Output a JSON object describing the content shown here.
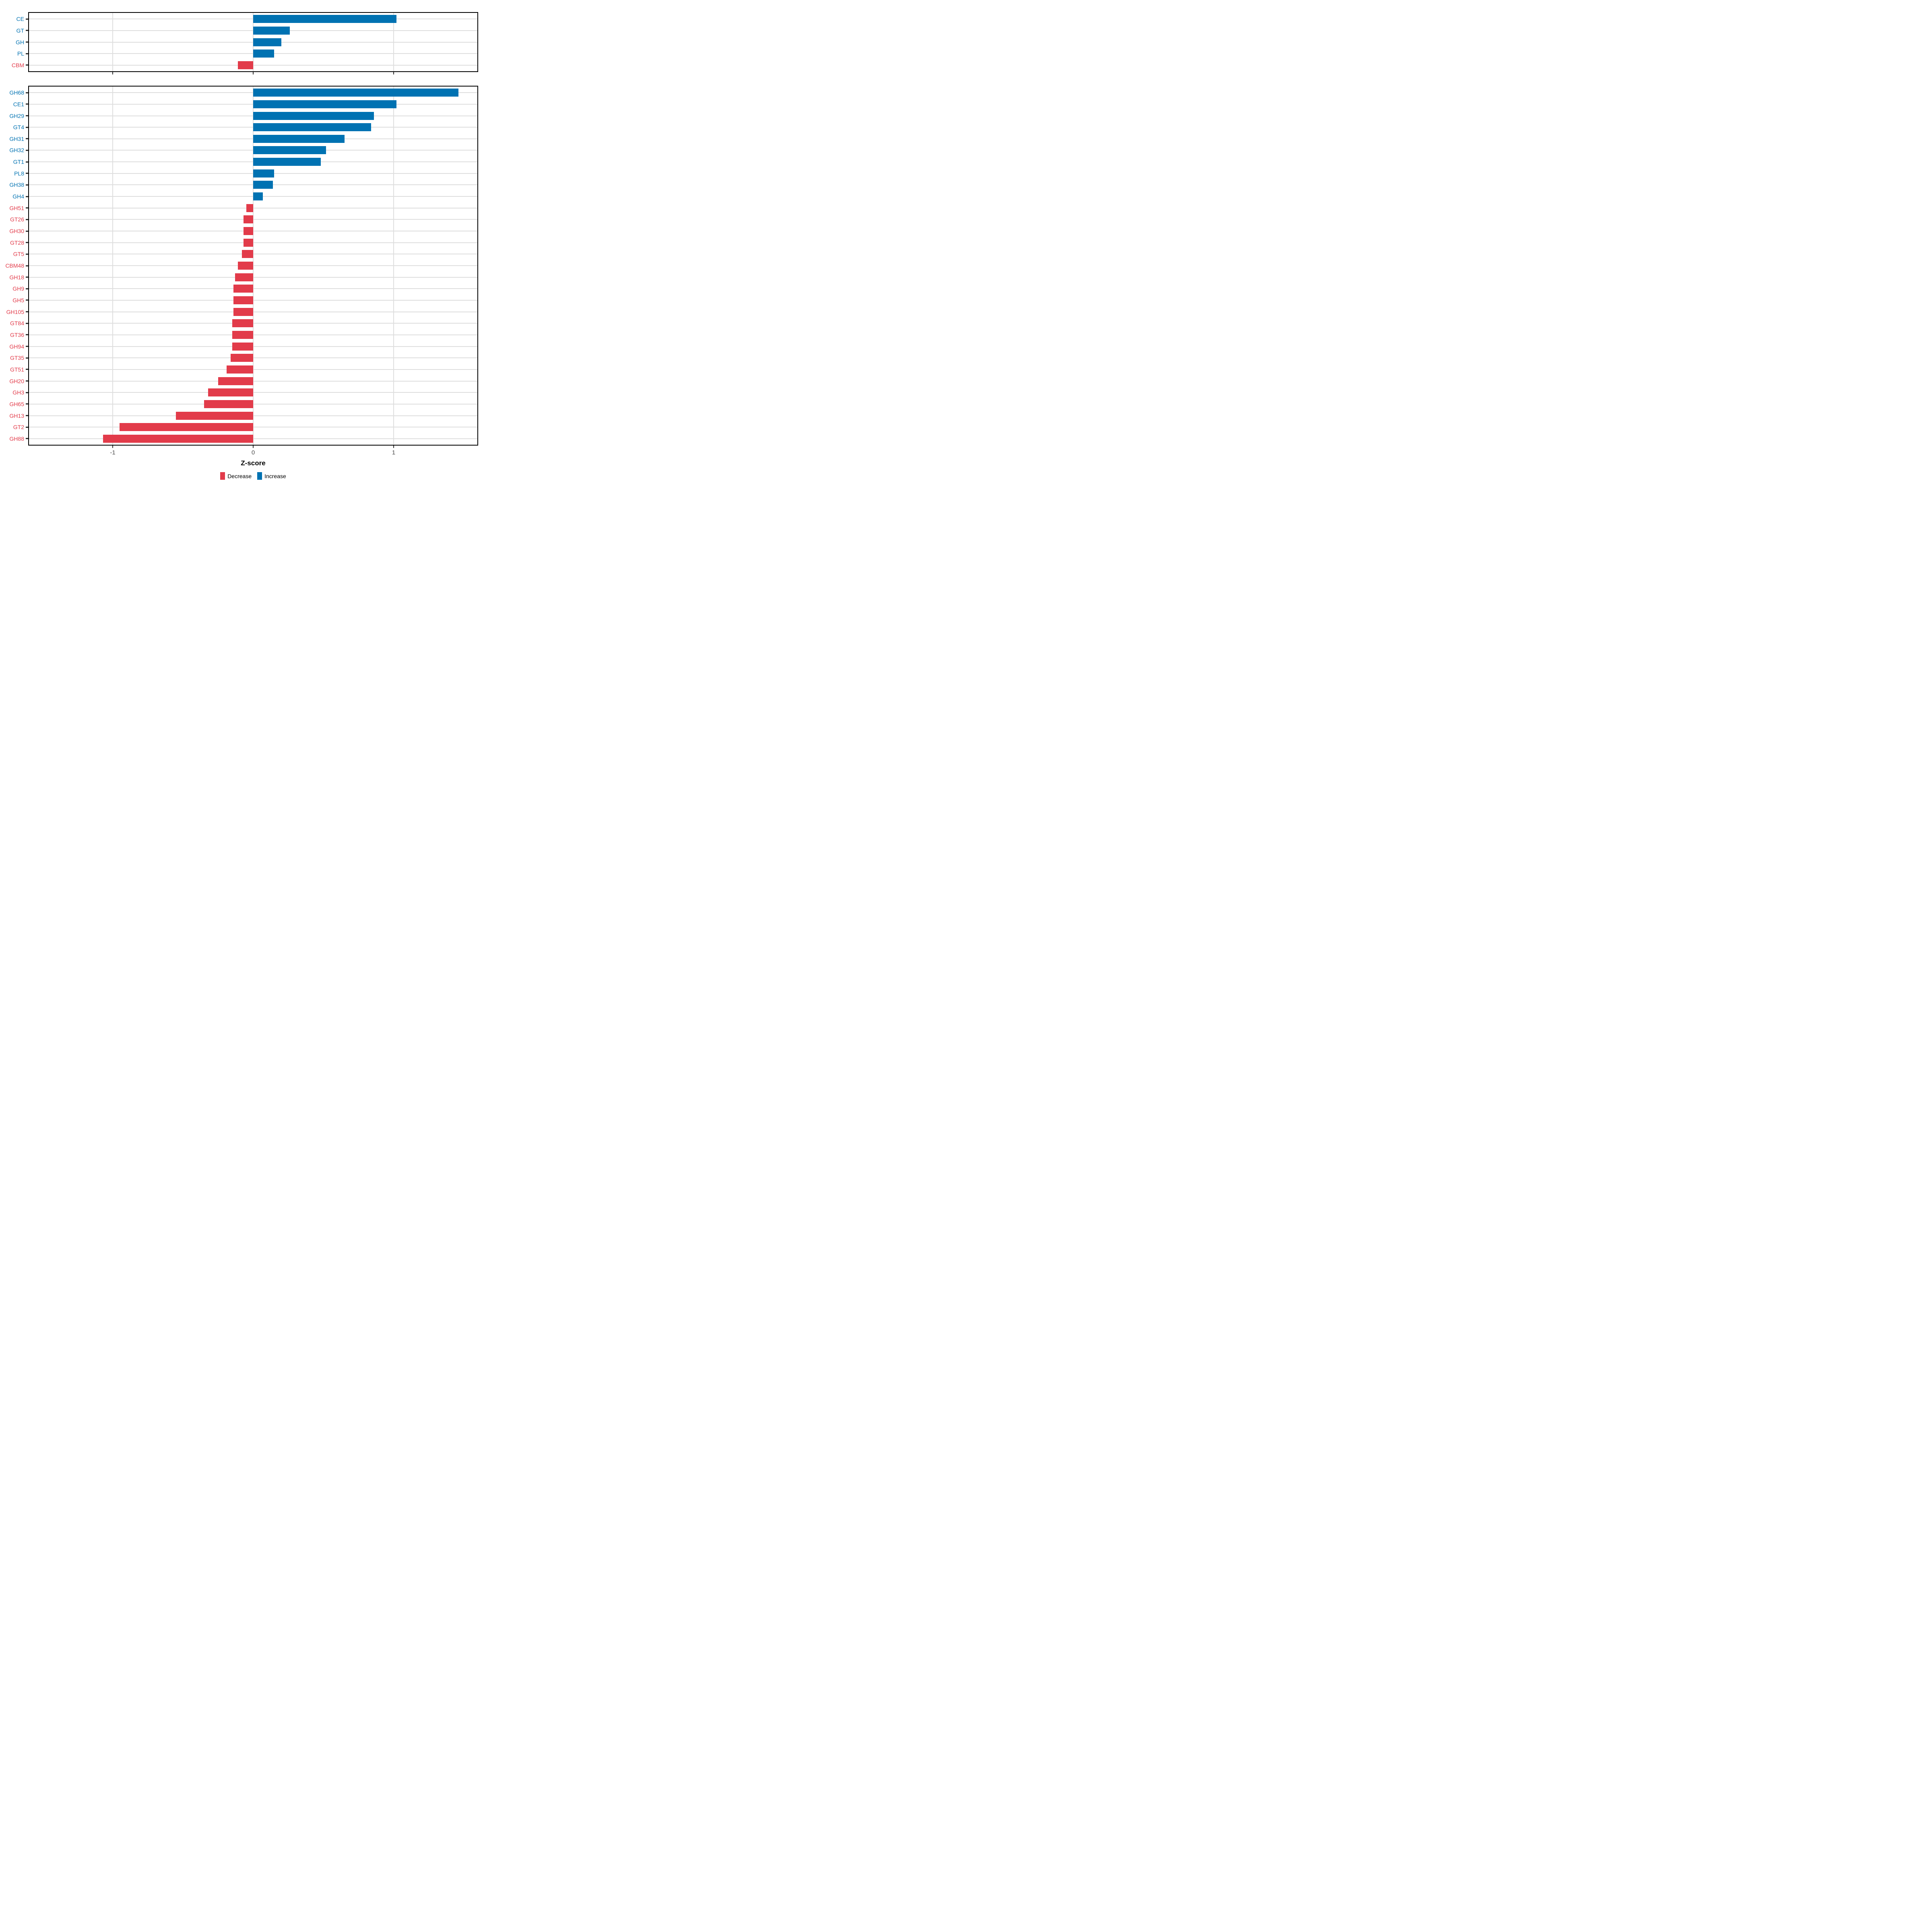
{
  "figure": {
    "background": "#FFFFFF"
  },
  "colors": {
    "increase": "#0072B2",
    "decrease": "#E23B4A",
    "grid": "#DEDEDE",
    "panel_border": "#000000",
    "tick_mark": "#333333",
    "axis_text": "#4D4D4D",
    "axis_title": "#000000"
  },
  "x_axis": {
    "title": "Z-score",
    "ticks": [
      -1,
      0,
      1
    ],
    "tick_labels": [
      "-1",
      "0",
      "1"
    ],
    "range": [
      -1.6,
      1.6
    ]
  },
  "legend": {
    "position": "bottom-center",
    "items": [
      {
        "label": "Decrease",
        "key": "decrease"
      },
      {
        "label": "Increase",
        "key": "increase"
      }
    ]
  },
  "chart_data": [
    {
      "type": "bar",
      "orientation": "horizontal",
      "panel": "cazyme-classes",
      "title": "",
      "xlabel": "Z-score",
      "ylabel": "",
      "xlim": [
        -1.6,
        1.6
      ],
      "grid": true,
      "legend_position": "bottom",
      "color_rule": "value >= 0 -> increase (blue), value < 0 -> decrease (red)",
      "categories": [
        "CE",
        "GT",
        "GH",
        "PL",
        "CBM"
      ],
      "values": [
        1.02,
        0.26,
        0.2,
        0.15,
        -0.11
      ]
    },
    {
      "type": "bar",
      "orientation": "horizontal",
      "panel": "cazyme-families",
      "title": "",
      "xlabel": "Z-score",
      "ylabel": "",
      "xlim": [
        -1.6,
        1.6
      ],
      "grid": true,
      "legend_position": "bottom",
      "color_rule": "value >= 0 -> increase (blue), value < 0 -> decrease (red)",
      "categories": [
        "GH68",
        "CE1",
        "GH29",
        "GT4",
        "GH31",
        "GH32",
        "GT1",
        "PL8",
        "GH38",
        "GH4",
        "GH51",
        "GT26",
        "GH30",
        "GT28",
        "GT5",
        "CBM48",
        "GH18",
        "GH9",
        "GH5",
        "GH105",
        "GT84",
        "GT36",
        "GH94",
        "GT35",
        "GT51",
        "GH20",
        "GH3",
        "GH65",
        "GH13",
        "GT2",
        "GH88"
      ],
      "values": [
        1.46,
        1.02,
        0.86,
        0.84,
        0.65,
        0.52,
        0.48,
        0.15,
        0.14,
        0.07,
        -0.05,
        -0.07,
        -0.07,
        -0.07,
        -0.08,
        -0.11,
        -0.13,
        -0.14,
        -0.14,
        -0.14,
        -0.15,
        -0.15,
        -0.15,
        -0.16,
        -0.19,
        -0.25,
        -0.32,
        -0.35,
        -0.55,
        -0.95,
        -1.07
      ]
    }
  ]
}
